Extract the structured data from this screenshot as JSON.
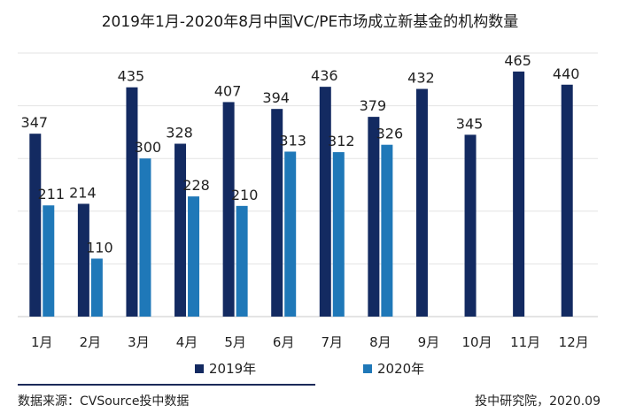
{
  "chart_data": {
    "type": "bar",
    "title": "2019年1月-2020年8月中国VC/PE市场成立新基金的机构数量",
    "categories": [
      "1月",
      "2月",
      "3月",
      "4月",
      "5月",
      "6月",
      "7月",
      "8月",
      "9月",
      "10月",
      "11月",
      "12月"
    ],
    "series": [
      {
        "name": "2019年",
        "color": "#132a61",
        "values": [
          347,
          214,
          435,
          328,
          407,
          394,
          436,
          379,
          432,
          345,
          465,
          440
        ]
      },
      {
        "name": "2020年",
        "color": "#1f78b8",
        "values": [
          211,
          110,
          300,
          228,
          210,
          313,
          312,
          326,
          null,
          null,
          null,
          null
        ]
      }
    ],
    "ylim": [
      0,
      500
    ],
    "grid": true,
    "legend": "bottom"
  },
  "footer": {
    "source": "数据来源：CVSource投中数据",
    "credit": "投中研究院，2020.09"
  }
}
